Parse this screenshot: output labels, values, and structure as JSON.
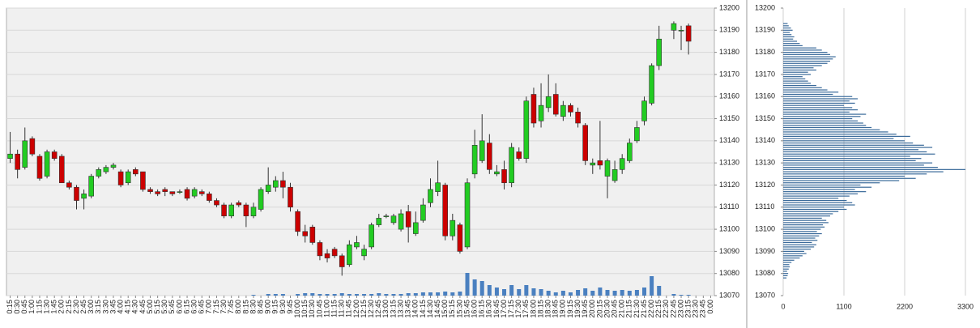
{
  "chart_data": [
    {
      "type": "candlestick",
      "categories": [
        "0:15",
        "0:30",
        "0:45",
        "1:00",
        "1:15",
        "1:30",
        "1:45",
        "2:00",
        "2:15",
        "2:30",
        "2:45",
        "3:00",
        "3:15",
        "3:30",
        "3:45",
        "4:00",
        "4:15",
        "4:30",
        "4:45",
        "5:00",
        "5:15",
        "5:30",
        "5:45",
        "6:00",
        "6:15",
        "6:30",
        "6:45",
        "7:00",
        "7:15",
        "7:30",
        "7:45",
        "8:00",
        "8:15",
        "8:30",
        "8:45",
        "9:00",
        "9:15",
        "9:30",
        "9:45",
        "10:00",
        "10:15",
        "10:30",
        "10:45",
        "11:00",
        "11:15",
        "11:30",
        "11:45",
        "12:00",
        "12:15",
        "12:30",
        "12:45",
        "13:00",
        "13:15",
        "13:30",
        "13:45",
        "14:00",
        "14:15",
        "14:30",
        "14:45",
        "15:00",
        "15:15",
        "15:30",
        "15:45",
        "16:00",
        "16:15",
        "16:30",
        "16:45",
        "17:00",
        "17:15",
        "17:30",
        "17:45",
        "18:00",
        "18:15",
        "18:30",
        "18:45",
        "19:00",
        "19:15",
        "19:30",
        "19:45",
        "20:00",
        "20:15",
        "20:30",
        "20:45",
        "21:00",
        "21:15",
        "21:30",
        "21:45",
        "22:00",
        "22:15",
        "22:30",
        "22:45",
        "23:00",
        "23:15",
        "23:30",
        "23:45",
        "0:00"
      ],
      "open": [
        13132,
        13134,
        13128,
        13141,
        13133,
        13124,
        13135,
        13133,
        13121,
        13119,
        13114,
        13115,
        13124,
        13126,
        13128,
        13126,
        13121,
        13127,
        13126,
        13118,
        13117,
        13118,
        13117,
        13117,
        13118,
        13115,
        13117,
        13116,
        13113,
        13111,
        13106,
        13112,
        13111,
        13106,
        13109,
        13117,
        13119,
        13122,
        13119,
        13108,
        13099,
        13101,
        13094,
        13089,
        13091,
        13088,
        13084,
        13092,
        13088,
        13092,
        13102,
        13106,
        13103,
        13100,
        13108,
        13098,
        13104,
        13112,
        13117,
        13120,
        13097,
        13102,
        13092,
        13125,
        13131,
        13139,
        13125,
        13127,
        13121,
        13135,
        13132,
        13161,
        13149,
        13155,
        13161,
        13151,
        13156,
        13153,
        13147,
        13129,
        13131,
        13124,
        13122,
        13127,
        13131,
        13140,
        13149,
        13157,
        13174,
        null,
        13190,
        13190,
        13192,
        null,
        null,
        null
      ],
      "high": [
        13144,
        13136,
        13146,
        13142,
        13134,
        13136,
        13136,
        13134,
        13122,
        13120,
        13118,
        13125,
        13128,
        13129,
        13130,
        13127,
        13127,
        13128,
        13126,
        13119,
        13118,
        13119,
        13117,
        13118,
        13119,
        13119,
        13118,
        13117,
        13114,
        13112,
        13112,
        13113,
        13112,
        13112,
        13119,
        13128,
        13124,
        13126,
        13121,
        13109,
        13102,
        13102,
        13095,
        13091,
        13092,
        13089,
        13095,
        13097,
        13093,
        13103,
        13107,
        13107,
        13107,
        13109,
        13111,
        13108,
        13114,
        13123,
        13131,
        13121,
        13107,
        13103,
        13123,
        13145,
        13152,
        13143,
        13129,
        13131,
        13139,
        13137,
        13160,
        13164,
        13166,
        13170,
        13166,
        13158,
        13157,
        13155,
        13148,
        13132,
        13149,
        13132,
        13131,
        13134,
        13141,
        13149,
        13160,
        13175,
        13192,
        null,
        13194,
        13192,
        13193,
        null,
        null,
        null
      ],
      "low": [
        13130,
        13123,
        13127,
        13133,
        13122,
        13123,
        13131,
        13121,
        13118,
        13109,
        13109,
        13114,
        13123,
        13125,
        13127,
        13119,
        13120,
        13124,
        13117,
        13116,
        13115,
        13115,
        13115,
        13116,
        13113,
        13114,
        13115,
        13112,
        13110,
        13105,
        13105,
        13110,
        13101,
        13105,
        13108,
        13116,
        13117,
        13114,
        13108,
        13097,
        13094,
        13093,
        13086,
        13085,
        13087,
        13079,
        13083,
        13091,
        13086,
        13091,
        13101,
        13105,
        13102,
        13099,
        13094,
        13097,
        13103,
        13110,
        13115,
        13095,
        13095,
        13089,
        13091,
        13123,
        13130,
        13125,
        13124,
        13118,
        13119,
        13131,
        13130,
        13146,
        13146,
        13153,
        13151,
        13149,
        13151,
        13146,
        13129,
        13125,
        13127,
        13114,
        13121,
        13125,
        13130,
        13139,
        13147,
        13156,
        13172,
        null,
        13186,
        13181,
        13179,
        null,
        null,
        null
      ],
      "close": [
        13134,
        13127,
        13140,
        13134,
        13123,
        13135,
        13132,
        13121,
        13119,
        13113,
        13116,
        13124,
        13127,
        13128,
        13129,
        13120,
        13126,
        13125,
        13118,
        13117,
        13116,
        13117,
        13116,
        13117,
        13114,
        13118,
        13116,
        13113,
        13111,
        13106,
        13111,
        13111,
        13106,
        13110,
        13118,
        13120,
        13122,
        13119,
        13110,
        13099,
        13097,
        13094,
        13088,
        13087,
        13088,
        13083,
        13093,
        13094,
        13091,
        13102,
        13105,
        13106,
        13106,
        13107,
        13101,
        13103,
        13111,
        13118,
        13121,
        13097,
        13104,
        13090,
        13121,
        13138,
        13140,
        13127,
        13126,
        13121,
        13137,
        13132,
        13158,
        13148,
        13156,
        13160,
        13152,
        13156,
        13153,
        13148,
        13131,
        13130,
        13129,
        13131,
        13127,
        13132,
        13139,
        13146,
        13158,
        13174,
        13186,
        null,
        13193,
        13190,
        13185,
        null,
        null,
        null
      ],
      "volume": [
        0,
        0,
        0,
        0,
        0,
        0,
        0,
        0,
        0,
        0,
        0,
        0,
        0,
        0,
        0,
        0,
        0,
        0,
        0,
        0,
        0,
        0,
        0,
        0,
        0,
        0,
        0,
        0,
        0,
        0,
        0,
        0,
        0,
        1,
        0,
        2,
        2,
        2,
        0,
        2,
        3,
        3,
        2,
        2,
        2,
        3,
        2,
        2,
        2,
        2,
        3,
        2,
        2,
        2,
        3,
        3,
        4,
        4,
        4,
        5,
        4,
        5,
        28,
        20,
        18,
        13,
        10,
        8,
        13,
        8,
        13,
        9,
        8,
        6,
        4,
        6,
        4,
        7,
        9,
        6,
        10,
        7,
        6,
        7,
        6,
        7,
        10,
        24,
        12,
        null,
        2,
        1,
        1,
        null,
        null,
        null
      ],
      "up_color": "#22cc22",
      "down_color": "#cc0000",
      "volume_color": "#4a80c0",
      "ylim": [
        13070,
        13200
      ],
      "yticks": [
        13070,
        13080,
        13090,
        13100,
        13110,
        13120,
        13130,
        13140,
        13150,
        13160,
        13170,
        13180,
        13190,
        13200
      ],
      "grid": true
    },
    {
      "type": "bar",
      "orientation": "horizontal",
      "y": [
        13078,
        13079,
        13080,
        13081,
        13082,
        13083,
        13084,
        13085,
        13086,
        13087,
        13088,
        13089,
        13090,
        13091,
        13092,
        13093,
        13094,
        13095,
        13096,
        13097,
        13098,
        13099,
        13100,
        13101,
        13102,
        13103,
        13104,
        13105,
        13106,
        13107,
        13108,
        13109,
        13110,
        13111,
        13112,
        13113,
        13114,
        13115,
        13116,
        13117,
        13118,
        13119,
        13120,
        13121,
        13122,
        13123,
        13124,
        13125,
        13126,
        13127,
        13128,
        13129,
        13130,
        13131,
        13132,
        13133,
        13134,
        13135,
        13136,
        13137,
        13138,
        13139,
        13140,
        13141,
        13142,
        13143,
        13144,
        13145,
        13146,
        13147,
        13148,
        13149,
        13150,
        13151,
        13152,
        13153,
        13154,
        13155,
        13156,
        13157,
        13158,
        13159,
        13160,
        13161,
        13162,
        13163,
        13164,
        13165,
        13166,
        13167,
        13168,
        13169,
        13170,
        13171,
        13172,
        13173,
        13174,
        13175,
        13176,
        13177,
        13178,
        13179,
        13180,
        13181,
        13182,
        13183,
        13184,
        13185,
        13186,
        13187,
        13188,
        13189,
        13190,
        13191,
        13192,
        13193
      ],
      "values": [
        60,
        80,
        90,
        70,
        100,
        120,
        110,
        150,
        200,
        300,
        350,
        420,
        380,
        500,
        560,
        600,
        520,
        620,
        580,
        650,
        700,
        610,
        680,
        750,
        720,
        820,
        780,
        700,
        850,
        900,
        1000,
        1150,
        1100,
        1300,
        1250,
        1150,
        1000,
        1200,
        1350,
        1500,
        1300,
        1600,
        1400,
        1750,
        2100,
        2400,
        2200,
        2600,
        2900,
        3300,
        2800,
        2550,
        2700,
        2400,
        2500,
        2300,
        2750,
        2600,
        2450,
        2700,
        2550,
        2350,
        2200,
        2000,
        2300,
        2050,
        1900,
        1750,
        1600,
        1500,
        1450,
        1350,
        1250,
        1400,
        1500,
        1200,
        1350,
        1250,
        1100,
        1300,
        1200,
        1350,
        1250,
        900,
        1000,
        800,
        700,
        600,
        500,
        450,
        400,
        350,
        500,
        450,
        600,
        550,
        700,
        800,
        850,
        900,
        950,
        850,
        800,
        700,
        600,
        350,
        300,
        250,
        180,
        200,
        150,
        120,
        170,
        140,
        100,
        80
      ],
      "color": "#3a6a9a",
      "xlim": [
        0,
        3300
      ],
      "xticks": [
        0,
        1100,
        2200,
        3300
      ],
      "ylim": [
        13070,
        13200
      ],
      "yticks": [
        13070,
        13080,
        13090,
        13100,
        13110,
        13120,
        13130,
        13140,
        13150,
        13160,
        13170,
        13180,
        13190,
        13200
      ],
      "grid": true
    }
  ]
}
